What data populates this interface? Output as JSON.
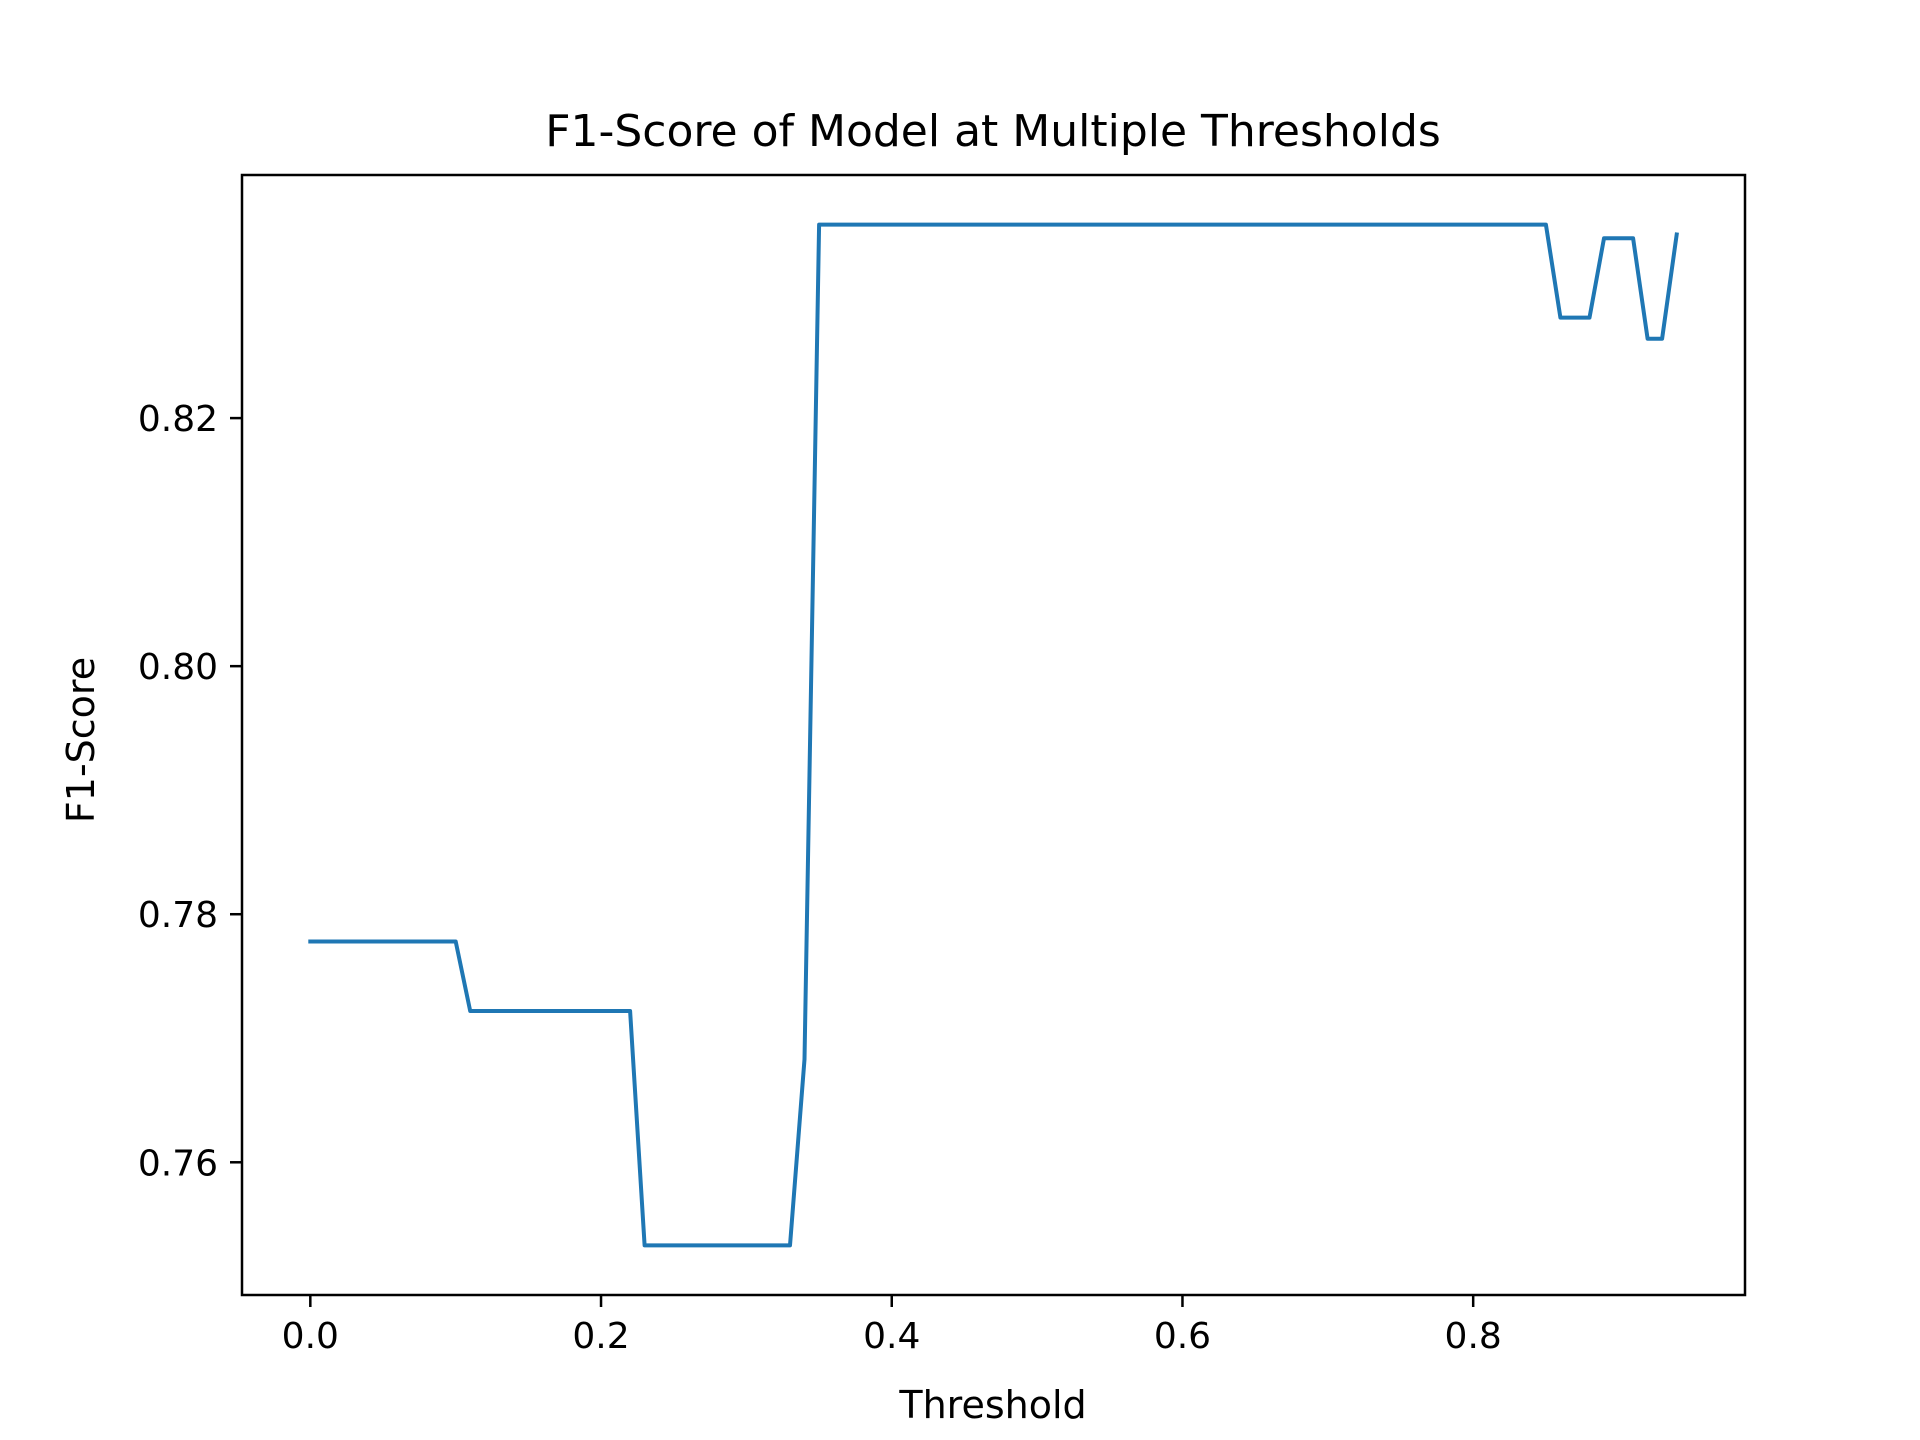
{
  "chart_data": {
    "type": "line",
    "title": "F1-Score of Model at Multiple Thresholds",
    "xlabel": "Threshold",
    "ylabel": "F1-Score",
    "xlim": [
      -0.047,
      0.987
    ],
    "ylim": [
      0.7493,
      0.8396
    ],
    "xticks": [
      0.0,
      0.2,
      0.4,
      0.6,
      0.8
    ],
    "xtick_labels": [
      "0.0",
      "0.2",
      "0.4",
      "0.6",
      "0.8"
    ],
    "yticks": [
      0.76,
      0.78,
      0.8,
      0.82
    ],
    "ytick_labels": [
      "0.76",
      "0.78",
      "0.80",
      "0.82"
    ],
    "grid": false,
    "legend": "none",
    "series": [
      {
        "color": "#1f77b4",
        "x": [
          0.0,
          0.1,
          0.11,
          0.22,
          0.23,
          0.33,
          0.34,
          0.35,
          0.85,
          0.86,
          0.88,
          0.89,
          0.91,
          0.92,
          0.93,
          0.94
        ],
        "y": [
          0.7778,
          0.7778,
          0.7722,
          0.7722,
          0.7533,
          0.7533,
          0.7683,
          0.8356,
          0.8356,
          0.8281,
          0.8281,
          0.8345,
          0.8345,
          0.8264,
          0.8264,
          0.8348
        ]
      }
    ]
  }
}
